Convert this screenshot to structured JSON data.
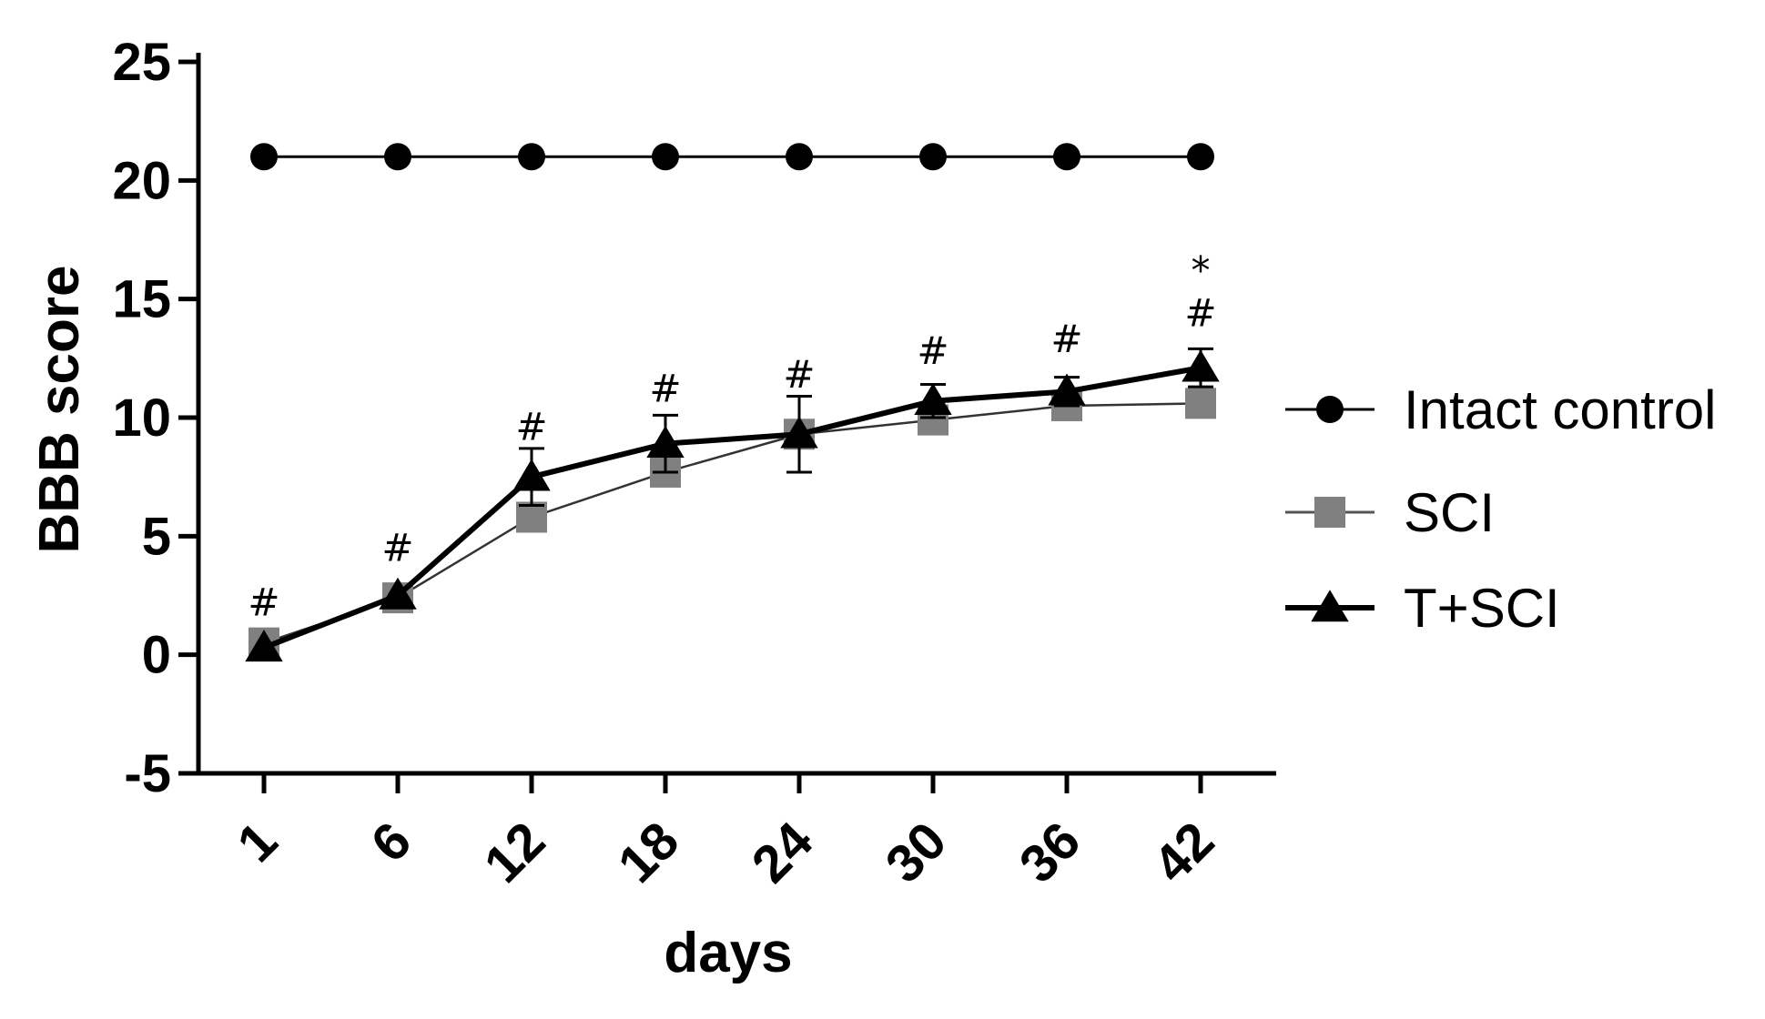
{
  "chart_data": {
    "type": "line",
    "title": "",
    "xlabel": "days",
    "ylabel": "BBB score",
    "categories": [
      "1",
      "6",
      "12",
      "18",
      "24",
      "30",
      "36",
      "42"
    ],
    "ylim": [
      -5,
      25
    ],
    "yticks": [
      "25",
      "20",
      "15",
      "10",
      "5",
      "0",
      "-5"
    ],
    "grid": false,
    "legend_position": "right",
    "series": [
      {
        "name": "Intact control",
        "marker": "circle",
        "color": "#000000",
        "values": [
          21,
          21,
          21,
          21,
          21,
          21,
          21,
          21
        ],
        "errors": [
          0,
          0,
          0,
          0,
          0,
          0,
          0,
          0
        ]
      },
      {
        "name": "SCI",
        "marker": "square",
        "color": "#808080",
        "values": [
          0.5,
          2.4,
          5.8,
          7.7,
          9.3,
          9.9,
          10.5,
          10.6
        ],
        "errors": [
          0,
          0,
          0,
          0,
          0,
          0,
          0,
          0
        ]
      },
      {
        "name": "T+SCI",
        "marker": "triangle",
        "color": "#000000",
        "values": [
          0.3,
          2.5,
          7.5,
          8.9,
          9.3,
          10.7,
          11.1,
          12.1
        ],
        "errors": [
          0,
          0,
          1.2,
          1.2,
          1.6,
          0.7,
          0.6,
          0.8
        ]
      }
    ],
    "annotations": [
      {
        "category": "1",
        "y": 2.2,
        "text": "#"
      },
      {
        "category": "6",
        "y": 4.5,
        "text": "#"
      },
      {
        "category": "12",
        "y": 9.6,
        "text": "#"
      },
      {
        "category": "18",
        "y": 11.2,
        "text": "#"
      },
      {
        "category": "24",
        "y": 11.8,
        "text": "#"
      },
      {
        "category": "30",
        "y": 12.8,
        "text": "#"
      },
      {
        "category": "36",
        "y": 13.3,
        "text": "#"
      },
      {
        "category": "42",
        "y": 14.4,
        "text": "#"
      },
      {
        "category": "42",
        "y": 16.2,
        "text": "*"
      }
    ]
  }
}
